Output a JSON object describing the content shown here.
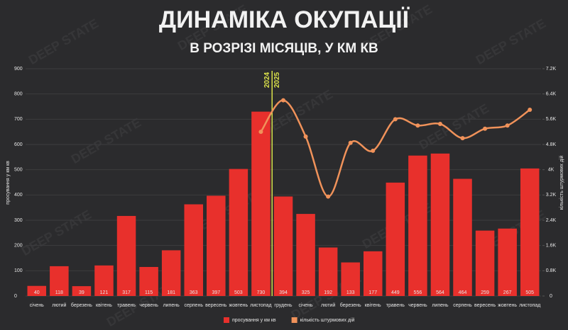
{
  "chart_data": {
    "type": "bar-line",
    "title": "ДИНАМІКА ОКУПАЦІЇ",
    "subtitle": "В РОЗРІЗІ МІСЯЦІВ, У КМ КВ",
    "watermark": "DEEP STATE",
    "y_label": "просування у км кв",
    "y2_label": "кількість штурмових дій",
    "annotations": [
      "2024",
      "2025"
    ],
    "categories": [
      "січень",
      "лютий",
      "березень",
      "квітень",
      "травень",
      "червень",
      "липень",
      "серпень",
      "вересень",
      "жовтень",
      "листопад",
      "грудень",
      "січень",
      "лютий",
      "березень",
      "квітень",
      "травень",
      "червень",
      "липень",
      "серпень",
      "вересень",
      "жовтень",
      "листопад"
    ],
    "series": [
      {
        "name": "просування у км кв",
        "type": "bar",
        "color": "#e8302c",
        "values": [
          40,
          118,
          39,
          121,
          317,
          115,
          181,
          363,
          397,
          503,
          730,
          394,
          325,
          192,
          133,
          177,
          449,
          556,
          564,
          464,
          259,
          267,
          505
        ]
      },
      {
        "name": "кількість штурмових дій",
        "type": "line",
        "axis": "y2",
        "color": "#f0925a",
        "values": [
          null,
          null,
          null,
          null,
          null,
          null,
          null,
          null,
          null,
          null,
          5200,
          6200,
          5050,
          3150,
          4850,
          4600,
          5600,
          5400,
          5450,
          5000,
          5300,
          5400,
          5900
        ]
      }
    ],
    "ylim": [
      0,
      900
    ],
    "yticks": [
      0,
      100,
      200,
      300,
      400,
      500,
      600,
      700,
      800,
      900
    ],
    "y2lim": [
      0,
      7200
    ],
    "y2ticks": [
      0,
      {
        "value": 800,
        "label": "0.8K"
      },
      {
        "value": 1600,
        "label": "1.6K"
      },
      {
        "value": 2400,
        "label": "2.4K"
      },
      {
        "value": 3200,
        "label": "3.2K"
      },
      {
        "value": 4000,
        "label": "4K"
      },
      {
        "value": 4800,
        "label": "4.8K"
      },
      {
        "value": 5600,
        "label": "5.6K"
      },
      {
        "value": 6400,
        "label": "6.4K"
      },
      {
        "value": 7200,
        "label": "7.2K"
      }
    ],
    "grid": true
  }
}
